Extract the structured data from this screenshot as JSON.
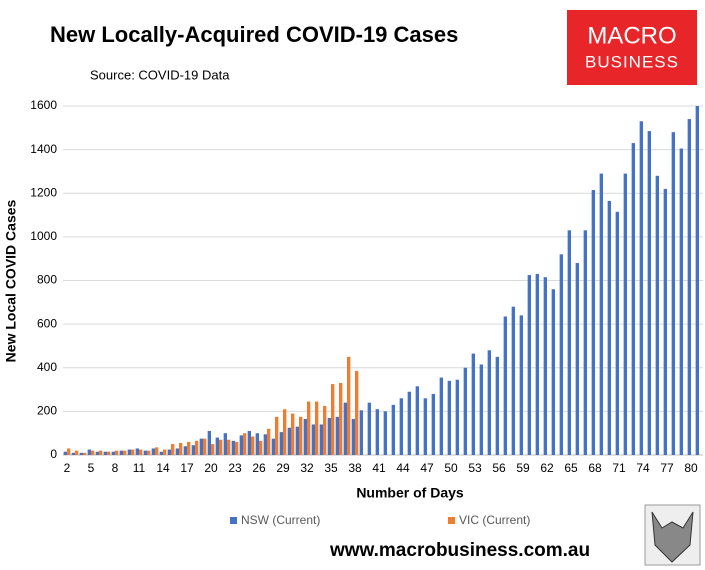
{
  "chart_data": {
    "type": "bar",
    "title": "New Locally-Acquired COVID-19 Cases",
    "subtitle": "Source: COVID-19 Data",
    "y_label": "New Local COVID Cases",
    "x_label": "Number of Days",
    "logo_text": [
      "MACRO",
      "BUSINESS"
    ],
    "footer": "www.macrobusiness.com.au",
    "categories": [
      2,
      null,
      null,
      5,
      null,
      null,
      8,
      null,
      null,
      11,
      null,
      null,
      14,
      null,
      null,
      17,
      null,
      null,
      20,
      null,
      null,
      23,
      null,
      null,
      26,
      null,
      null,
      29,
      null,
      null,
      32,
      null,
      null,
      35,
      null,
      null,
      38,
      null,
      null,
      41,
      null,
      null,
      44,
      null,
      null,
      47,
      null,
      null,
      50,
      null,
      null,
      53,
      null,
      null,
      56,
      null,
      null,
      59,
      null,
      null,
      62,
      null,
      null,
      65,
      null,
      null,
      68,
      null,
      null,
      71,
      null,
      null,
      74,
      null,
      null,
      77,
      null,
      null,
      80,
      null
    ],
    "series": [
      {
        "name": "NSW (Current)",
        "color": "#4472c4",
        "values": [
          15,
          10,
          10,
          25,
          15,
          15,
          15,
          20,
          25,
          30,
          20,
          30,
          15,
          25,
          30,
          40,
          45,
          75,
          110,
          80,
          100,
          65,
          90,
          110,
          100,
          95,
          75,
          105,
          125,
          130,
          165,
          140,
          140,
          170,
          175,
          240,
          165,
          205,
          240,
          210,
          200,
          230,
          260,
          290,
          315,
          260,
          280,
          355,
          340,
          345,
          400,
          465,
          415,
          480,
          450,
          635,
          680,
          640,
          825,
          830,
          815,
          760,
          920,
          1030,
          880,
          1030,
          1215,
          1290,
          1165,
          1115,
          1290,
          1430,
          1530,
          1485,
          1280,
          1220,
          1480,
          1405,
          1540,
          1600
        ]
      },
      {
        "name": "VIC (Current)",
        "color": "#ed7d31",
        "values": [
          30,
          20,
          10,
          20,
          20,
          15,
          20,
          20,
          25,
          25,
          20,
          35,
          25,
          50,
          55,
          60,
          65,
          75,
          50,
          70,
          70,
          60,
          100,
          85,
          65,
          120,
          175,
          210,
          190,
          175,
          245,
          245,
          225,
          325,
          330,
          450,
          385,
          null,
          null,
          null,
          null,
          null,
          null,
          null,
          null,
          null,
          null,
          null,
          null,
          null,
          null,
          null,
          null,
          null,
          null,
          null,
          null,
          null,
          null,
          null,
          null,
          null,
          null,
          null,
          null,
          null,
          null,
          null,
          null,
          null,
          null,
          null,
          null,
          null,
          null,
          null,
          null,
          null,
          null,
          null
        ]
      }
    ],
    "ylim": [
      0,
      1600
    ],
    "yticks": [
      0,
      200,
      400,
      600,
      800,
      1000,
      1200,
      1400,
      1600
    ],
    "grid": true,
    "legend": "bottom"
  }
}
